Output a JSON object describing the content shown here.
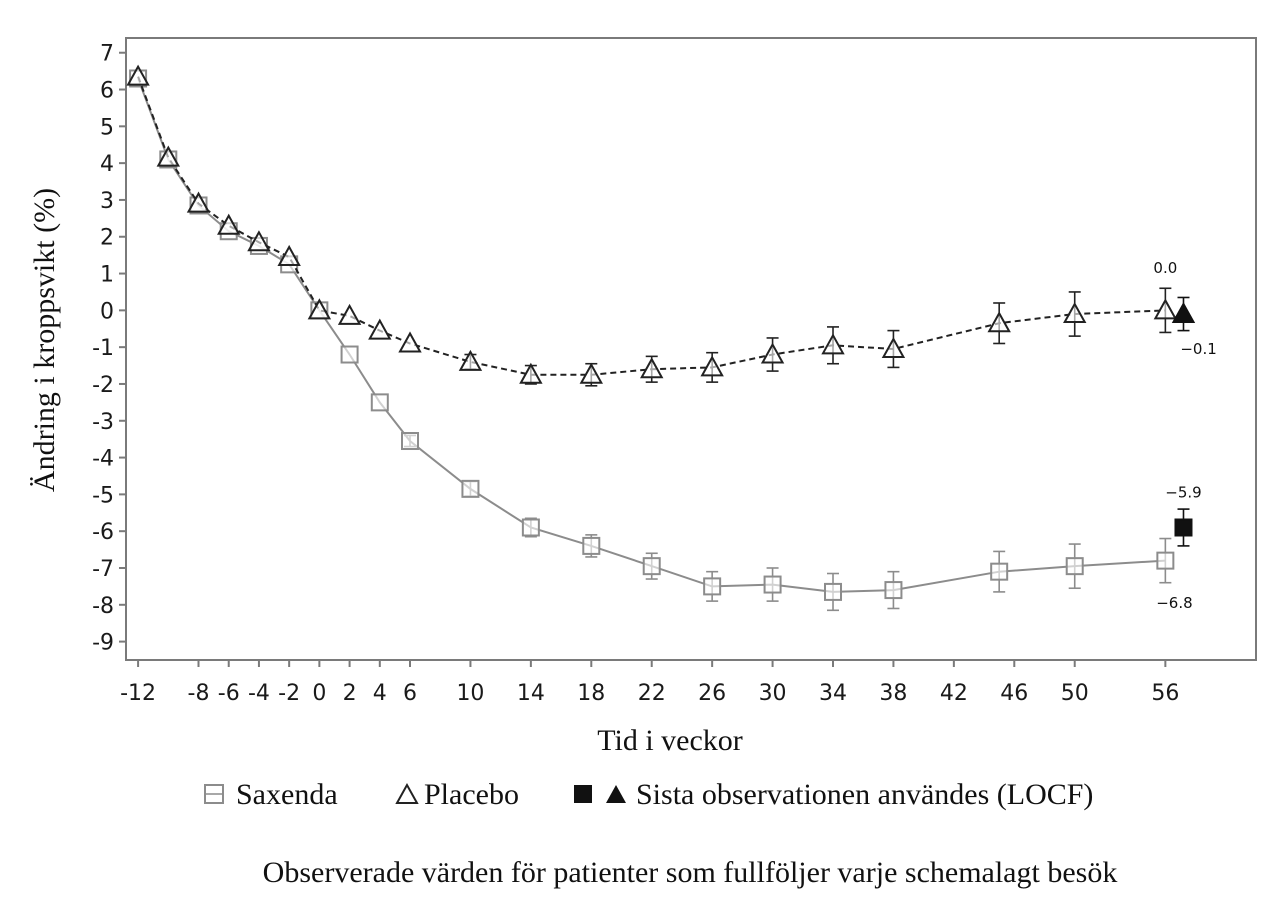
{
  "chart_data": {
    "type": "line",
    "title": "",
    "xlabel": "Tid i veckor",
    "ylabel": "Ändring i kroppsvikt (%)",
    "x_ticks": [
      -12,
      -8,
      -6,
      -4,
      -2,
      0,
      2,
      4,
      6,
      10,
      14,
      18,
      22,
      26,
      30,
      34,
      38,
      42,
      46,
      50,
      56
    ],
    "y_ticks": [
      7,
      6,
      5,
      4,
      3,
      2,
      1,
      0,
      -1,
      -2,
      -3,
      -4,
      -5,
      -6,
      -7,
      -8,
      -9
    ],
    "xlim": [
      -12.8,
      62
    ],
    "ylim": [
      -9.5,
      7.4
    ],
    "grid": false,
    "series": [
      {
        "name": "Saxenda",
        "marker": "open-square",
        "line": "solid",
        "color": "#8c8c8c",
        "x": [
          -12,
          -10,
          -8,
          -6,
          -4,
          -2,
          0,
          2,
          4,
          6,
          10,
          14,
          18,
          22,
          26,
          30,
          34,
          38,
          45,
          50,
          56
        ],
        "y": [
          6.3,
          4.1,
          2.85,
          2.15,
          1.75,
          1.25,
          0.0,
          -1.2,
          -2.5,
          -3.55,
          -4.85,
          -5.9,
          -6.4,
          -6.95,
          -7.5,
          -7.45,
          -7.65,
          -7.6,
          -7.1,
          -6.95,
          -6.8
        ],
        "err": [
          0,
          0,
          0,
          0,
          0,
          0,
          0,
          0,
          0,
          0.15,
          0.2,
          0.25,
          0.3,
          0.35,
          0.4,
          0.45,
          0.5,
          0.5,
          0.55,
          0.6,
          0.6
        ]
      },
      {
        "name": "Placebo",
        "marker": "open-triangle",
        "line": "dashed",
        "color": "#222222",
        "x": [
          -12,
          -10,
          -8,
          -6,
          -4,
          -2,
          0,
          2,
          4,
          6,
          10,
          14,
          18,
          22,
          26,
          30,
          34,
          38,
          45,
          50,
          56
        ],
        "y": [
          6.35,
          4.15,
          2.9,
          2.3,
          1.85,
          1.45,
          0.0,
          -0.15,
          -0.55,
          -0.9,
          -1.4,
          -1.75,
          -1.75,
          -1.6,
          -1.55,
          -1.2,
          -0.95,
          -1.05,
          -0.35,
          -0.1,
          0.0
        ],
        "err": [
          0,
          0,
          0,
          0,
          0,
          0,
          0,
          0,
          0,
          0,
          0.2,
          0.25,
          0.3,
          0.35,
          0.4,
          0.45,
          0.5,
          0.5,
          0.55,
          0.6,
          0.6
        ]
      },
      {
        "name": "Sista observationen användes (LOCF)",
        "points": [
          {
            "group": "Saxenda",
            "marker": "filled-square",
            "x": 57.2,
            "y": -5.9,
            "err": 0.5
          },
          {
            "group": "Placebo",
            "marker": "filled-triangle",
            "x": 57.2,
            "y": -0.1,
            "err": 0.45
          }
        ]
      }
    ],
    "annotations": [
      {
        "text": "0.0",
        "x": 56,
        "y": 1.15
      },
      {
        "text": "−0.1",
        "x": 58.2,
        "y": -1.05
      },
      {
        "text": "−5.9",
        "x": 57.2,
        "y": -4.95
      },
      {
        "text": "−6.8",
        "x": 56.6,
        "y": -7.95
      }
    ],
    "legend": {
      "position": "bottom",
      "items": [
        {
          "label": "Saxenda",
          "symbol": "open-square"
        },
        {
          "label": "Placebo",
          "symbol": "open-triangle"
        },
        {
          "label": "Sista observationen användes (LOCF)",
          "symbol": "filled-square-and-triangle"
        }
      ]
    },
    "caption": "Observerade värden för patienter som fullföljer varje schemalagt besök",
    "colors": {
      "frame": "#7a7a7a",
      "saxenda": "#8c8c8c",
      "placebo": "#222222",
      "locf": "#111111"
    }
  }
}
